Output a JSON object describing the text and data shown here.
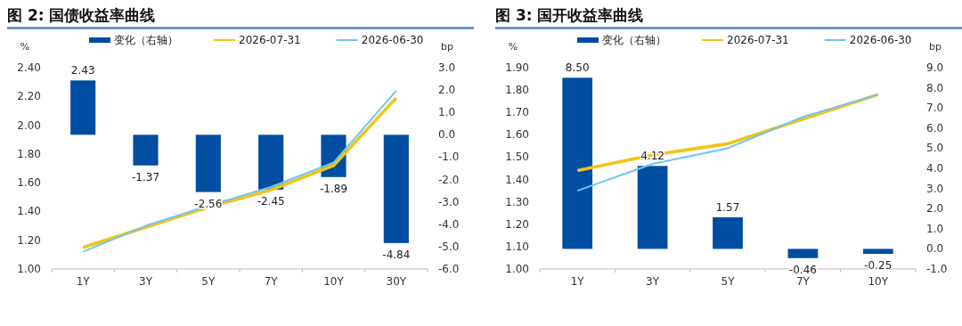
{
  "chart_data": [
    {
      "type": "bar",
      "title": "图 2:  国债收益率曲线",
      "ylabel": "%",
      "y2label": "bp",
      "legend": "top",
      "categories": [
        "1Y",
        "3Y",
        "5Y",
        "7Y",
        "10Y",
        "30Y"
      ],
      "ylim": [
        1.0,
        2.4
      ],
      "yticks": [
        {
          "value": 1.0,
          "label": "1.00"
        },
        {
          "value": 1.2,
          "label": "1.20"
        },
        {
          "value": 1.4,
          "label": "1.40"
        },
        {
          "value": 1.6,
          "label": "1.60"
        },
        {
          "value": 1.8,
          "label": "1.80"
        },
        {
          "value": 2.0,
          "label": "2.00"
        },
        {
          "value": 2.2,
          "label": "2.20"
        },
        {
          "value": 2.4,
          "label": "2.40"
        }
      ],
      "y2lim": [
        -6,
        3
      ],
      "y2ticks": [
        {
          "value": -6,
          "label": "-6.0"
        },
        {
          "value": -5,
          "label": "-5.0"
        },
        {
          "value": -4,
          "label": "-4.0"
        },
        {
          "value": -3,
          "label": "-3.0"
        },
        {
          "value": -2,
          "label": "-2.0"
        },
        {
          "value": -1,
          "label": "-1.0"
        },
        {
          "value": 0,
          "label": "0.0"
        },
        {
          "value": 1,
          "label": "1.0"
        },
        {
          "value": 2,
          "label": "2.0"
        },
        {
          "value": 3,
          "label": "3.0"
        }
      ],
      "series": [
        {
          "name": "变化（右轴）",
          "type": "bar",
          "axis": "y2",
          "color": "#004ea2",
          "values": [
            2.43,
            -1.37,
            -2.56,
            -2.45,
            -1.89,
            -4.84
          ],
          "value_labels": [
            "2.43",
            "-1.37",
            "-2.56",
            "-2.45",
            "-1.89",
            "-4.84"
          ]
        },
        {
          "name": "2026-07-31",
          "type": "line",
          "color": "#f2c318",
          "values": [
            1.15,
            1.29,
            1.43,
            1.55,
            1.72,
            2.19
          ]
        },
        {
          "name": "2026-06-30",
          "type": "line",
          "color": "#6ec6f1",
          "values": [
            1.12,
            1.3,
            1.44,
            1.57,
            1.74,
            2.24
          ]
        }
      ]
    },
    {
      "type": "bar",
      "title": "图 3:  国开收益率曲线",
      "ylabel": "%",
      "y2label": "bp",
      "legend": "top",
      "categories": [
        "1Y",
        "3Y",
        "5Y",
        "7Y",
        "10Y"
      ],
      "ylim": [
        1.0,
        1.9
      ],
      "yticks": [
        {
          "value": 1.0,
          "label": "1.00"
        },
        {
          "value": 1.1,
          "label": "1.10"
        },
        {
          "value": 1.2,
          "label": "1.20"
        },
        {
          "value": 1.3,
          "label": "1.30"
        },
        {
          "value": 1.4,
          "label": "1.40"
        },
        {
          "value": 1.5,
          "label": "1.50"
        },
        {
          "value": 1.6,
          "label": "1.60"
        },
        {
          "value": 1.7,
          "label": "1.70"
        },
        {
          "value": 1.8,
          "label": "1.80"
        },
        {
          "value": 1.9,
          "label": "1.90"
        }
      ],
      "y2lim": [
        -1,
        9
      ],
      "y2ticks": [
        {
          "value": -1,
          "label": "-1.0"
        },
        {
          "value": 0,
          "label": "0.0"
        },
        {
          "value": 1,
          "label": "1.0"
        },
        {
          "value": 2,
          "label": "2.0"
        },
        {
          "value": 3,
          "label": "3.0"
        },
        {
          "value": 4,
          "label": "4.0"
        },
        {
          "value": 5,
          "label": "5.0"
        },
        {
          "value": 6,
          "label": "6.0"
        },
        {
          "value": 7,
          "label": "7.0"
        },
        {
          "value": 8,
          "label": "8.0"
        },
        {
          "value": 9,
          "label": "9.0"
        }
      ],
      "series": [
        {
          "name": "变化（右轴）",
          "type": "bar",
          "axis": "y2",
          "color": "#004ea2",
          "values": [
            8.5,
            4.12,
            1.57,
            -0.46,
            -0.25
          ],
          "value_labels": [
            "8.50",
            "4.12",
            "1.57",
            "-0.46",
            "-0.25"
          ]
        },
        {
          "name": "2026-07-31",
          "type": "line",
          "color": "#f2c318",
          "values": [
            1.44,
            1.51,
            1.56,
            1.67,
            1.78
          ]
        },
        {
          "name": "2026-06-30",
          "type": "line",
          "color": "#6ec6f1",
          "values": [
            1.35,
            1.47,
            1.54,
            1.68,
            1.78
          ]
        }
      ]
    }
  ]
}
